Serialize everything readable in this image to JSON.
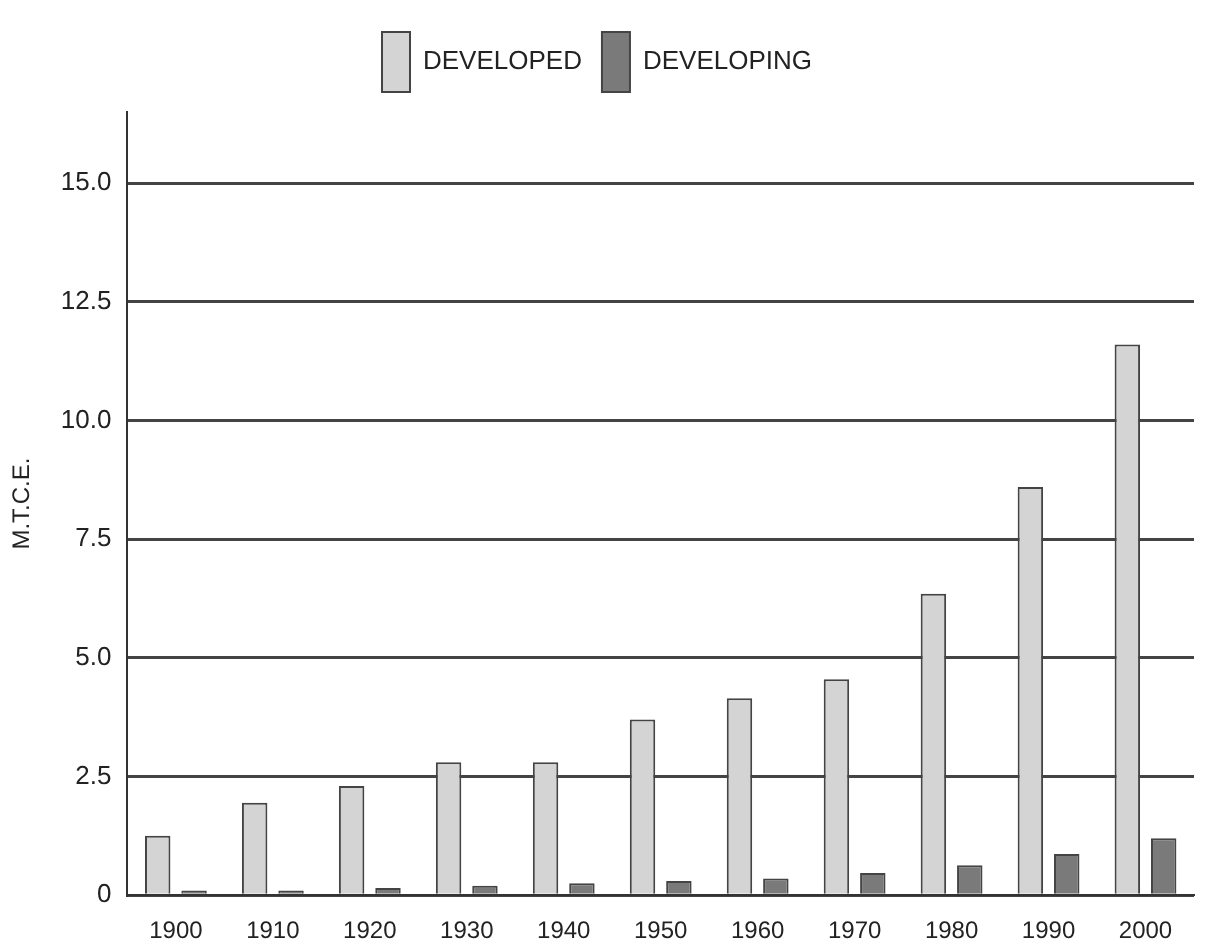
{
  "chart_data": {
    "type": "bar",
    "ylabel": "M.T.C.E.",
    "categories": [
      "1900",
      "1910",
      "1920",
      "1930",
      "1940",
      "1950",
      "1960",
      "1970",
      "1980",
      "1990",
      "2000"
    ],
    "series": [
      {
        "name": "DEVELOPED",
        "color": "#d4d4d4",
        "values": [
          1.25,
          1.95,
          2.3,
          2.8,
          2.8,
          3.7,
          4.15,
          4.55,
          6.35,
          8.6,
          11.6
        ]
      },
      {
        "name": "DEVELOPING",
        "color": "#7a7a7a",
        "values": [
          0.1,
          0.1,
          0.15,
          0.2,
          0.25,
          0.3,
          0.35,
          0.47,
          0.63,
          0.87,
          1.2
        ]
      }
    ],
    "ylim": [
      0,
      16.5
    ],
    "yticks": [
      0,
      {
        "value": 2.5,
        "label": "2.5"
      },
      {
        "value": 5,
        "label": "5.0"
      },
      {
        "value": 7.5,
        "label": "7.5"
      },
      {
        "value": 10,
        "label": "10.0"
      },
      {
        "value": 12.5,
        "label": "12.5"
      },
      {
        "value": 15,
        "label": "15.0"
      }
    ],
    "grid": "y",
    "legend": "top"
  }
}
